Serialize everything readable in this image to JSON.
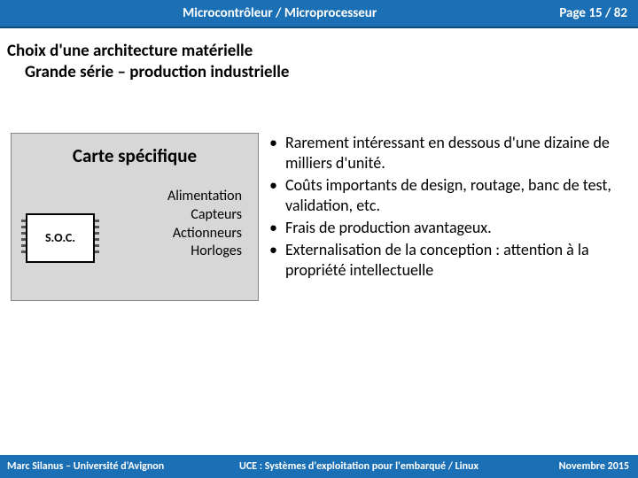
{
  "header": {
    "title": "Microcontrôleur / Microprocesseur",
    "page": "Page 15 / 82",
    "bg_color": "#1a6fb5"
  },
  "subtitle": {
    "line1": "Choix d'une architecture matérielle",
    "line2": "Grande série – production industrielle"
  },
  "card": {
    "title": "Carte spécifique",
    "chip_label": "S.O.C.",
    "items": [
      "Alimentation",
      "Capteurs",
      "Actionneurs",
      "Horloges"
    ],
    "bg_color": "#d7d7d7"
  },
  "bullets": [
    "Rarement intéressant en dessous d'une dizaine de milliers d'unité.",
    "Coûts importants de design, routage, banc de test, validation, etc.",
    "Frais de production avantageux.",
    "Externalisation de la conception : attention à la propriété intellectuelle"
  ],
  "footer": {
    "left": "Marc Silanus – Université d'Avignon",
    "center": "UCE : Systèmes d'exploitation pour l'embarqué / Linux",
    "right": "Novembre 2015"
  }
}
